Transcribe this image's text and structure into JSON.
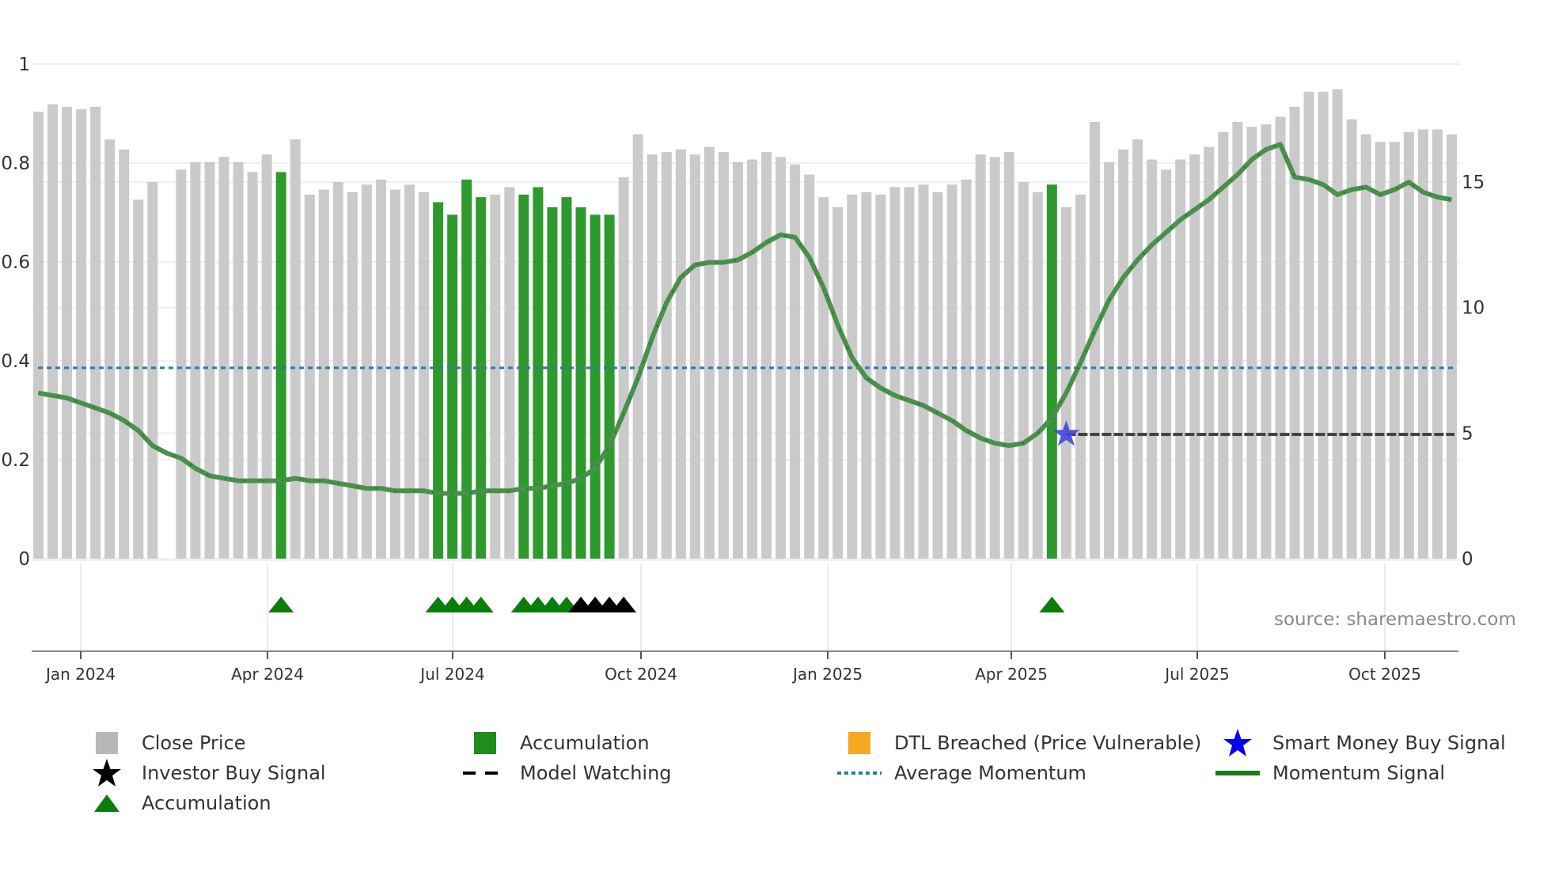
{
  "chart_data": {
    "type": "bar",
    "title": "",
    "xlabel": "",
    "ylabel_left": "",
    "ylabel_right": "",
    "left_axis": {
      "ticks": [
        0,
        0.2,
        0.4,
        0.6,
        0.8,
        1
      ],
      "tick_labels": [
        "0",
        "0.2",
        "0.4",
        "0.6",
        "0.8",
        "1"
      ],
      "ylim": [
        0,
        1
      ]
    },
    "right_axis": {
      "ticks": [
        0,
        5,
        10,
        15
      ],
      "tick_labels": [
        "0",
        "5",
        "10",
        "15"
      ],
      "ylim": [
        0,
        19.7
      ]
    },
    "x_tick_labels": [
      "Jan 2024",
      "Apr 2024",
      "Jul 2024",
      "Oct 2024",
      "Jan 2025",
      "Apr 2025",
      "Jul 2025",
      "Oct 2025"
    ],
    "grid": true,
    "legend_position": "bottom",
    "series": [
      {
        "name": "Close Price",
        "type": "bar",
        "axis": "right",
        "color": "#c8c8c8",
        "values": [
          17.8,
          18.1,
          18.0,
          17.9,
          18.0,
          16.7,
          16.3,
          14.3,
          15.0,
          null,
          15.5,
          15.8,
          15.8,
          16.0,
          15.8,
          15.4,
          16.1,
          15.4,
          16.7,
          14.5,
          14.7,
          15.0,
          14.6,
          14.9,
          15.1,
          14.7,
          14.9,
          14.6,
          14.2,
          13.7,
          15.1,
          14.4,
          14.5,
          14.8,
          14.5,
          14.8,
          14.0,
          14.4,
          14.0,
          13.7,
          13.7,
          15.2,
          16.9,
          16.1,
          16.2,
          16.3,
          16.1,
          16.4,
          16.2,
          15.8,
          15.9,
          16.2,
          16.0,
          15.7,
          15.3,
          14.4,
          14.0,
          14.5,
          14.6,
          14.5,
          14.8,
          14.8,
          14.9,
          14.6,
          14.9,
          15.1,
          16.1,
          16.0,
          16.2,
          15.0,
          14.6,
          14.9,
          14.0,
          14.5,
          17.4,
          15.8,
          16.3,
          16.7,
          15.9,
          15.5,
          15.9,
          16.1,
          16.4,
          17.0,
          17.4,
          17.2,
          17.3,
          17.6,
          18.0,
          18.6,
          18.6,
          18.7,
          17.5,
          16.9,
          16.6,
          16.6,
          17.0,
          17.1,
          17.1,
          16.9
        ]
      },
      {
        "name": "Accumulation",
        "type": "bar",
        "axis": "right",
        "color": "#2e9a2e",
        "indices": [
          17,
          28,
          29,
          30,
          31,
          34,
          35,
          36,
          37,
          38,
          39,
          40,
          71
        ]
      },
      {
        "name": "Momentum Signal",
        "type": "line",
        "axis": "right",
        "color": "#2f7d32",
        "values": [
          6.6,
          6.5,
          6.4,
          6.2,
          6.0,
          5.8,
          5.5,
          5.1,
          4.5,
          4.2,
          4.0,
          3.6,
          3.3,
          3.2,
          3.1,
          3.1,
          3.1,
          3.1,
          3.2,
          3.1,
          3.1,
          3.0,
          2.9,
          2.8,
          2.8,
          2.7,
          2.7,
          2.7,
          2.6,
          2.6,
          2.6,
          2.7,
          2.7,
          2.7,
          2.8,
          2.8,
          2.9,
          3.0,
          3.2,
          3.6,
          4.5,
          5.8,
          7.2,
          8.8,
          10.2,
          11.2,
          11.7,
          11.8,
          11.8,
          11.9,
          12.2,
          12.6,
          12.9,
          12.8,
          12.0,
          10.8,
          9.3,
          8.0,
          7.2,
          6.8,
          6.5,
          6.3,
          6.1,
          5.8,
          5.5,
          5.1,
          4.8,
          4.6,
          4.5,
          4.6,
          5.0,
          5.6,
          6.6,
          7.8,
          9.1,
          10.3,
          11.2,
          11.9,
          12.5,
          13.0,
          13.5,
          13.9,
          14.3,
          14.8,
          15.3,
          15.9,
          16.3,
          16.5,
          15.2,
          15.1,
          14.9,
          14.5,
          14.7,
          14.8,
          14.5,
          14.7,
          15.0,
          14.6,
          14.4,
          14.3
        ]
      },
      {
        "name": "Average Momentum",
        "type": "line",
        "axis": "right",
        "style": "dotted",
        "color": "#2f78a8",
        "value": 7.6
      },
      {
        "name": "Model Watching",
        "type": "line",
        "axis": "right",
        "style": "dashed",
        "color": "#111111",
        "value": 4.95,
        "from_index": 72
      },
      {
        "name": "Smart Money Buy Signal",
        "type": "marker",
        "marker": "star",
        "color": "#2020e0",
        "index": 72,
        "value": 4.95
      },
      {
        "name": "Accumulation",
        "type": "marker",
        "marker": "triangle",
        "color": "#0a7d0a",
        "panel": "lower",
        "indices": [
          17,
          28,
          29,
          30,
          31,
          34,
          35,
          36,
          37,
          71
        ]
      },
      {
        "name": "Investor Buy Signal",
        "type": "marker",
        "marker": "triangle",
        "color": "#000000",
        "panel": "lower",
        "indices": [
          38,
          39,
          40,
          41
        ]
      },
      {
        "name": "DTL Breached (Price Vulnerable)",
        "type": "bar",
        "color": "#f5a820",
        "indices": []
      }
    ],
    "annotations": [
      "source: sharemaestro.com"
    ]
  },
  "axes": {
    "left": [
      "0",
      "0.2",
      "0.4",
      "0.6",
      "0.8",
      "1"
    ],
    "right": [
      "0",
      "5",
      "10",
      "15"
    ],
    "x": [
      "Jan 2024",
      "Apr 2024",
      "Jul 2024",
      "Oct 2024",
      "Jan 2025",
      "Apr 2025",
      "Jul 2025",
      "Oct 2025"
    ]
  },
  "source_label": "source: sharemaestro.com",
  "legend": [
    {
      "label": "Close Price",
      "symbol": "square",
      "color": "#b8b8b8"
    },
    {
      "label": "Accumulation",
      "symbol": "square",
      "color": "#1e8c1e"
    },
    {
      "label": "DTL Breached (Price Vulnerable)",
      "symbol": "square",
      "color": "#f5a820"
    },
    {
      "label": "Smart Money Buy Signal",
      "symbol": "star",
      "color": "#0000ee"
    },
    {
      "label": "Investor Buy Signal",
      "symbol": "star",
      "color": "#000000"
    },
    {
      "label": "Model Watching",
      "symbol": "dash",
      "color": "#000000"
    },
    {
      "label": "Average Momentum",
      "symbol": "dot",
      "color": "#2f78a8"
    },
    {
      "label": "Momentum Signal",
      "symbol": "line",
      "color": "#1a7a1a"
    },
    {
      "label": "Accumulation",
      "symbol": "triangle",
      "color": "#0a7d0a"
    }
  ]
}
